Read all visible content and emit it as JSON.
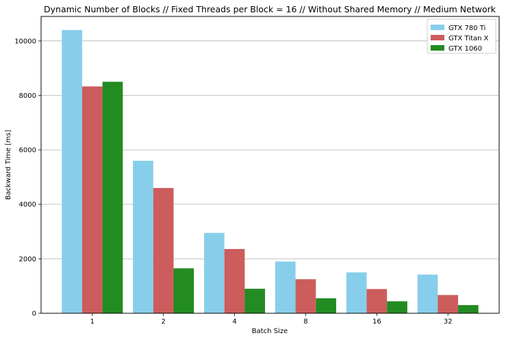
{
  "chart_data": {
    "type": "bar",
    "title": "Dynamic Number of Blocks // Fixed Threads per Block = 16 // Without Shared Memory // Medium Network",
    "xlabel": "Batch Size",
    "ylabel": "Backward Time [ms]",
    "categories": [
      "1",
      "2",
      "4",
      "8",
      "16",
      "32"
    ],
    "ylim": [
      0,
      10900
    ],
    "yticks": [
      0,
      2000,
      4000,
      6000,
      8000,
      10000
    ],
    "grid": "y-axis horizontal lines",
    "legend_position": "top-right",
    "series": [
      {
        "name": "GTX 780 Ti",
        "color": "#87ceeb",
        "values": [
          10400,
          5600,
          2950,
          1900,
          1500,
          1420
        ]
      },
      {
        "name": "GTX Titan X",
        "color": "#cd5c5c",
        "values": [
          8330,
          4600,
          2360,
          1250,
          890,
          670
        ]
      },
      {
        "name": "GTX 1060",
        "color": "#228b22",
        "values": [
          8500,
          1650,
          900,
          550,
          440,
          300
        ]
      }
    ]
  }
}
